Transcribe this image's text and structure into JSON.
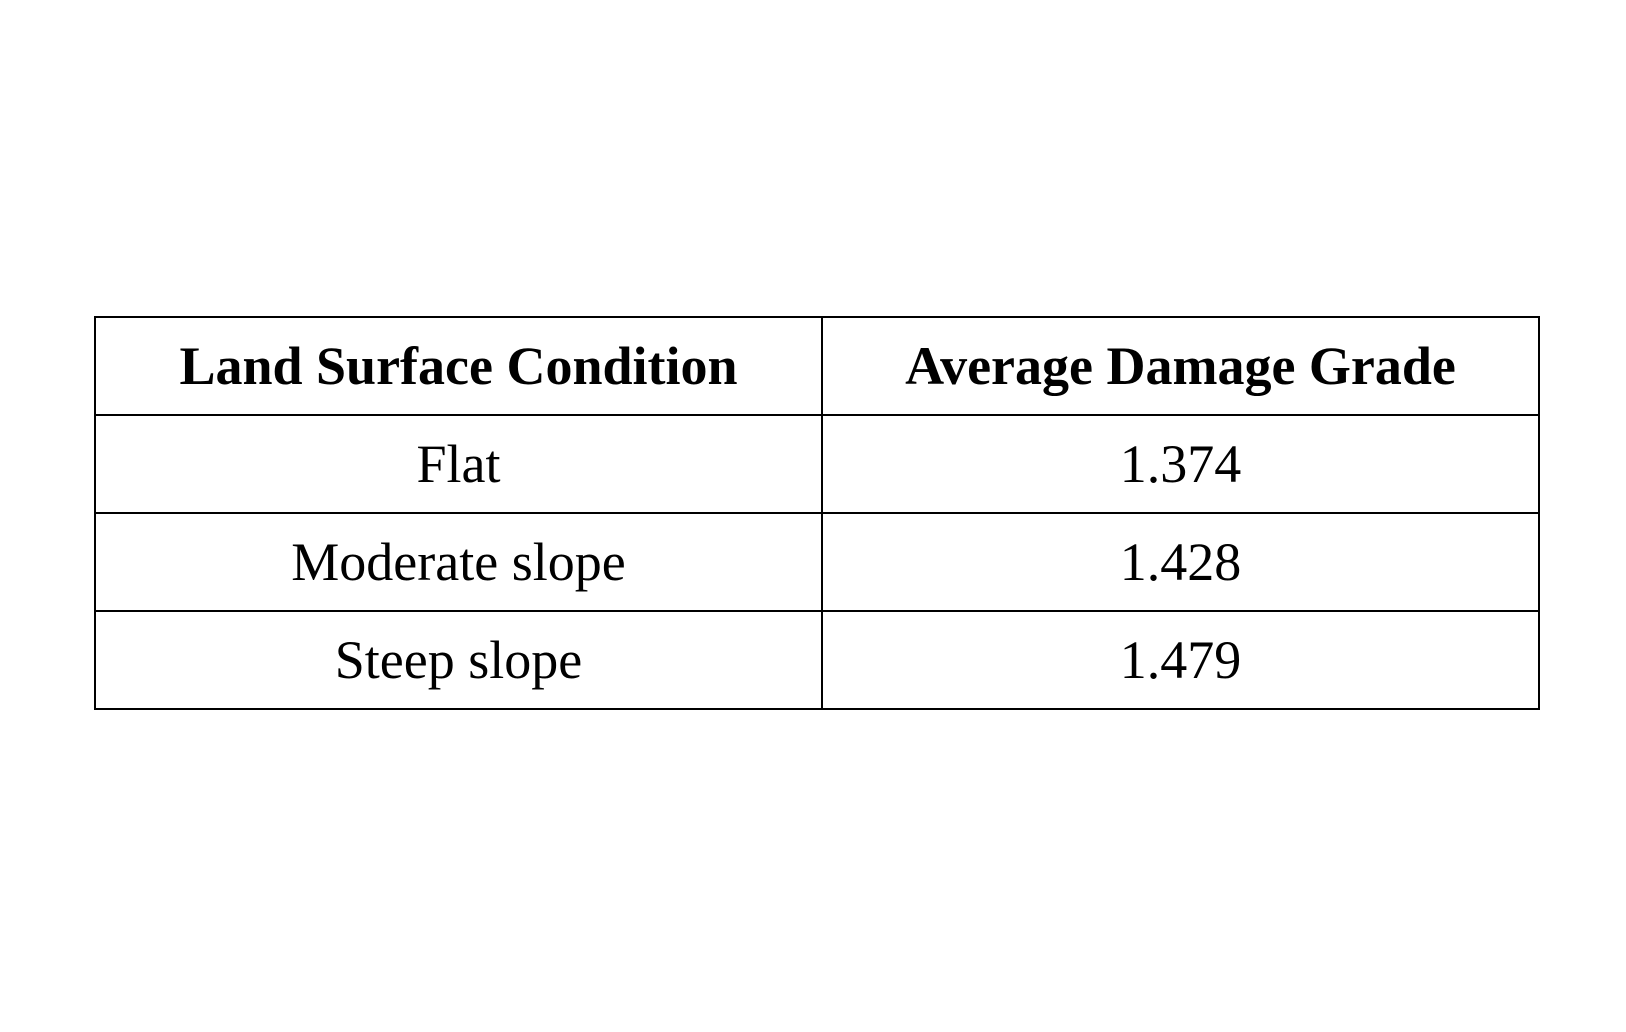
{
  "table": {
    "headers": [
      "Land Surface Condition",
      "Average Damage Grade"
    ],
    "rows": [
      [
        "Flat",
        "1.374"
      ],
      [
        "Moderate slope",
        "1.428"
      ],
      [
        "Steep slope",
        "1.479"
      ]
    ]
  }
}
